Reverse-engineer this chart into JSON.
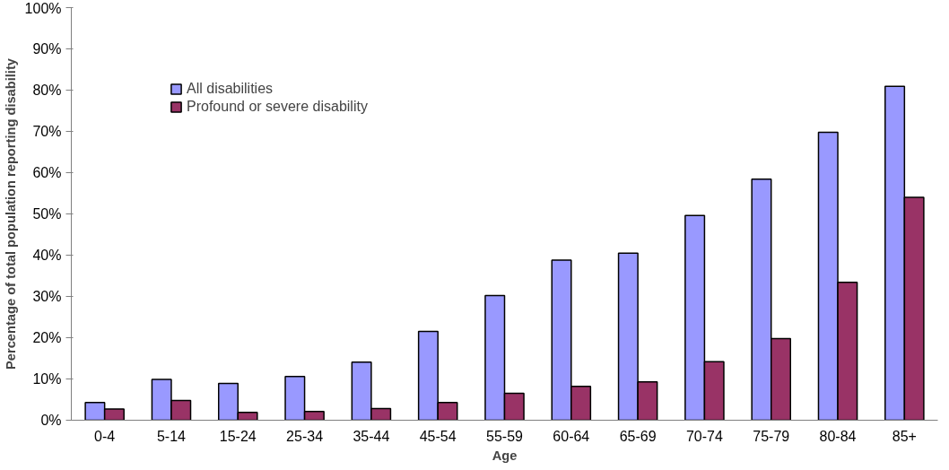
{
  "chart_data": {
    "type": "bar",
    "xlabel": "Age",
    "ylabel": "Percentage of total population reporting disability",
    "categories": [
      "0-4",
      "5-14",
      "15-24",
      "25-34",
      "35-44",
      "45-54",
      "55-59",
      "60-64",
      "65-69",
      "70-74",
      "75-79",
      "80-84",
      "85+"
    ],
    "series": [
      {
        "name": "All disabilities",
        "color": "#9999ff",
        "values": [
          4.3,
          9.9,
          8.9,
          10.6,
          14.1,
          21.5,
          30.2,
          38.8,
          40.5,
          49.6,
          58.4,
          69.8,
          80.9
        ]
      },
      {
        "name": "Profound or severe disability",
        "color": "#993366",
        "values": [
          2.7,
          4.8,
          1.9,
          2.1,
          2.8,
          4.3,
          6.5,
          8.2,
          9.3,
          14.2,
          19.8,
          33.4,
          54.0
        ]
      }
    ],
    "ylim": [
      0,
      100
    ],
    "yticks": [
      {
        "value": 0,
        "label": "0%"
      },
      {
        "value": 10,
        "label": "10%"
      },
      {
        "value": 20,
        "label": "20%"
      },
      {
        "value": 30,
        "label": "30%"
      },
      {
        "value": 40,
        "label": "40%"
      },
      {
        "value": 50,
        "label": "50%"
      },
      {
        "value": 60,
        "label": "60%"
      },
      {
        "value": 70,
        "label": "70%"
      },
      {
        "value": 80,
        "label": "80%"
      },
      {
        "value": 90,
        "label": "90%"
      },
      {
        "value": 100,
        "label": "100%"
      }
    ],
    "grid": false,
    "legend": "top left"
  }
}
